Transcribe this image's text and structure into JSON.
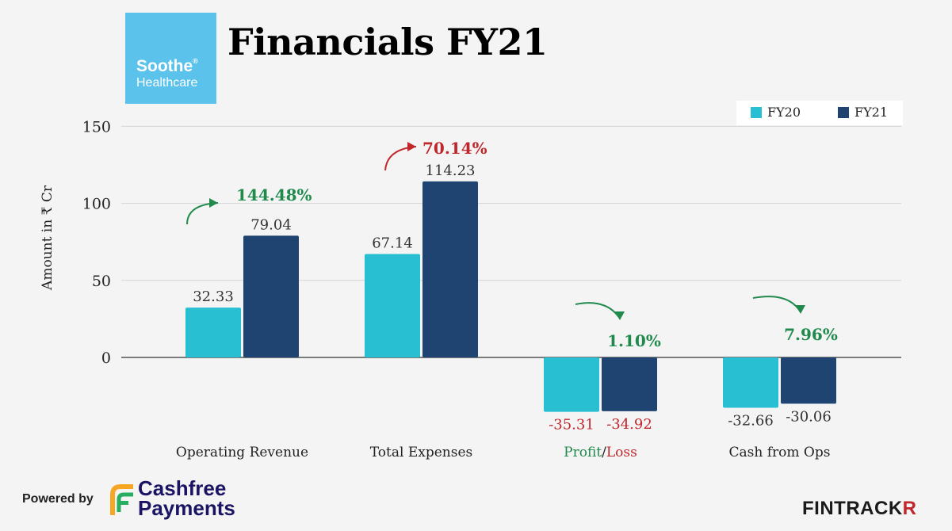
{
  "brand": {
    "logo_line1": "Soothe",
    "logo_reg": "®",
    "logo_line2": "Healthcare"
  },
  "title": "Financials FY21",
  "colors": {
    "fy20": "#29bfd3",
    "fy21": "#1f4471",
    "up_green": "#1f8a4c",
    "down_red": "#c0272d"
  },
  "chart_data": {
    "type": "bar",
    "categories": [
      "Operating Revenue",
      "Total Expenses",
      "Profit/Loss",
      "Cash from Ops"
    ],
    "series": [
      {
        "name": "FY20",
        "values": [
          32.33,
          67.14,
          -35.31,
          -32.66
        ]
      },
      {
        "name": "FY21",
        "values": [
          79.04,
          114.23,
          -34.92,
          -30.06
        ]
      }
    ],
    "value_labels": [
      [
        "32.33",
        "79.04"
      ],
      [
        "67.14",
        "114.23"
      ],
      [
        "-35.31",
        "-34.92"
      ],
      [
        "-32.66",
        "-30.06"
      ]
    ],
    "changes": [
      "144.48%",
      "70.14%",
      "1.10%",
      "7.96%"
    ],
    "ylabel": "Amount in ₹ Cr",
    "yticks": [
      0,
      50,
      100,
      150
    ],
    "ylim": [
      -50,
      160
    ],
    "legend": "top-right",
    "grid": true
  },
  "footer": {
    "powered_by": "Powered by",
    "partner_line1": "Cashfree",
    "partner_line2": "Payments",
    "publisher_a": "FINTRACK",
    "publisher_b": "R"
  }
}
